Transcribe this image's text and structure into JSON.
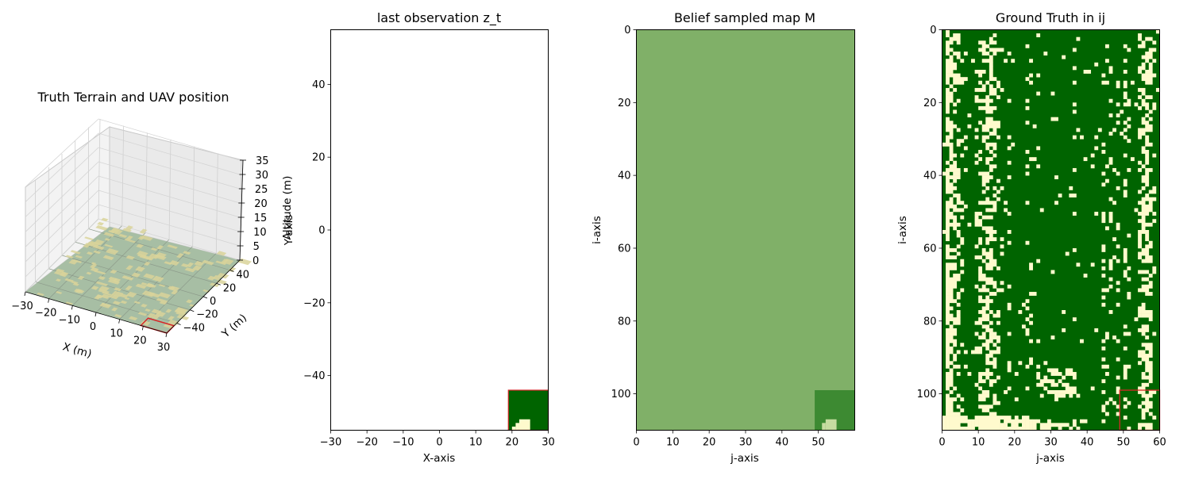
{
  "chart_data": [
    {
      "type": "surface3d",
      "title": "Truth Terrain and UAV position",
      "xlabel": "X (m)",
      "ylabel": "Y (m)",
      "zlabel": "Altitude (m)",
      "xlim": [
        -30,
        30
      ],
      "ylim": [
        -55,
        55
      ],
      "zlim": [
        0,
        35
      ],
      "xticks": [
        -30,
        -20,
        -10,
        0,
        10,
        20,
        30
      ],
      "yticks": [
        -40,
        -20,
        0,
        20,
        40
      ],
      "zticks": [
        0,
        5,
        10,
        15,
        20,
        25,
        30,
        35
      ],
      "uav_footprint": {
        "x": [
          19,
          30
        ],
        "y": [
          -55,
          -44
        ]
      },
      "colors": {
        "forest": "#a7bea4",
        "clearing": "#d9d49a",
        "footprint": "#d62728"
      }
    },
    {
      "type": "heatmap",
      "title": "last observation z_t",
      "xlabel": "X-axis",
      "ylabel": "Y-axis",
      "xlim": [
        -30,
        30
      ],
      "ylim": [
        -55,
        55
      ],
      "xticks": [
        -30,
        -20,
        -10,
        0,
        10,
        20,
        30
      ],
      "yticks": [
        -40,
        -20,
        0,
        20,
        40
      ],
      "observed_region": {
        "x": [
          19,
          30
        ],
        "y": [
          -55,
          -44
        ]
      },
      "colors": {
        "forest": "#006400",
        "clearing": "#fffacd",
        "frame": "#d62728"
      }
    },
    {
      "type": "heatmap",
      "title": "Belief sampled map M",
      "xlabel": "j-axis",
      "ylabel": "i-axis",
      "xlim": [
        0,
        60
      ],
      "ylim": [
        110,
        0
      ],
      "xticks": [
        0,
        10,
        20,
        30,
        40,
        50
      ],
      "yticks": [
        0,
        20,
        40,
        60,
        80,
        100
      ],
      "prior_value": 0.5,
      "updated_region": {
        "j": [
          49,
          60
        ],
        "i": [
          99,
          110
        ]
      },
      "colors": {
        "prior": "#80b068",
        "updated": "#3d8a32",
        "light": "#c6dca0"
      }
    },
    {
      "type": "heatmap",
      "title": "Ground Truth in ij",
      "xlabel": "j-axis",
      "ylabel": "i-axis",
      "xlim": [
        0,
        60
      ],
      "ylim": [
        110,
        0
      ],
      "xticks": [
        0,
        10,
        20,
        30,
        40,
        50,
        60
      ],
      "yticks": [
        0,
        20,
        40,
        60,
        80,
        100
      ],
      "uav_footprint": {
        "j": [
          49,
          60
        ],
        "i": [
          99,
          110
        ]
      },
      "colors": {
        "forest": "#006400",
        "clearing": "#fffacd",
        "footprint": "#d62728"
      }
    }
  ]
}
